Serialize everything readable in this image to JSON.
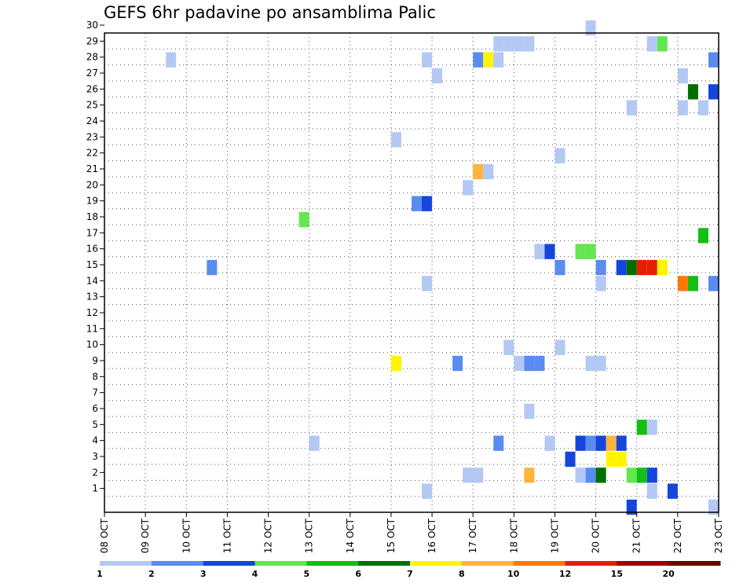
{
  "chart_data": {
    "type": "heatmap",
    "title": "GEFS 6hr padavine po ansamblima Palic",
    "x_ticks": [
      "08 OCT",
      "09 OCT",
      "10 OCT",
      "11 OCT",
      "12 OCT",
      "13 OCT",
      "14 OCT",
      "15 OCT",
      "16 OCT",
      "17 OCT",
      "18 OCT",
      "19 OCT",
      "20 OCT",
      "21 OCT",
      "22 OCT",
      "23 OCT"
    ],
    "y_ticks": [
      "1",
      "2",
      "3",
      "4",
      "5",
      "6",
      "7",
      "8",
      "9",
      "10",
      "11",
      "12",
      "13",
      "14",
      "15",
      "16",
      "17",
      "18",
      "19",
      "20",
      "21",
      "22",
      "23",
      "24",
      "25",
      "26",
      "27",
      "28",
      "29",
      "30"
    ],
    "x_range": [
      "08 OCT 00Z",
      "23 OCT 00Z"
    ],
    "y_range": [
      0,
      30
    ],
    "grid": true,
    "time_step_hours": 6,
    "colorbar": {
      "labels": [
        "1",
        "2",
        "3",
        "4",
        "5",
        "6",
        "7",
        "8",
        "10",
        "12",
        "15",
        "20"
      ],
      "colors": [
        "#b4c8f4",
        "#5a8cf0",
        "#1446dc",
        "#64e650",
        "#14be14",
        "#006e00",
        "#fff500",
        "#ffb43c",
        "#ff7800",
        "#e61e00",
        "#a00000",
        "#6e0000"
      ]
    },
    "cells": [
      {
        "member": 30,
        "day": 19.875,
        "cat": 1
      },
      {
        "member": 29,
        "day": 17.625,
        "cat": 1
      },
      {
        "member": 29,
        "day": 17.875,
        "cat": 1
      },
      {
        "member": 29,
        "day": 18.125,
        "cat": 1
      },
      {
        "member": 29,
        "day": 18.375,
        "cat": 1
      },
      {
        "member": 29,
        "day": 21.375,
        "cat": 1
      },
      {
        "member": 29,
        "day": 21.625,
        "cat": 4
      },
      {
        "member": 28,
        "day": 9.625,
        "cat": 1
      },
      {
        "member": 28,
        "day": 15.875,
        "cat": 1
      },
      {
        "member": 28,
        "day": 17.125,
        "cat": 2
      },
      {
        "member": 28,
        "day": 17.375,
        "cat": 7
      },
      {
        "member": 28,
        "day": 17.625,
        "cat": 1
      },
      {
        "member": 28,
        "day": 22.875,
        "cat": 2
      },
      {
        "member": 27,
        "day": 16.125,
        "cat": 1
      },
      {
        "member": 27,
        "day": 22.125,
        "cat": 1
      },
      {
        "member": 26,
        "day": 22.375,
        "cat": 6
      },
      {
        "member": 26,
        "day": 22.875,
        "cat": 3
      },
      {
        "member": 25,
        "day": 20.875,
        "cat": 1
      },
      {
        "member": 25,
        "day": 22.125,
        "cat": 1
      },
      {
        "member": 25,
        "day": 22.625,
        "cat": 1
      },
      {
        "member": 23,
        "day": 15.125,
        "cat": 1
      },
      {
        "member": 22,
        "day": 19.125,
        "cat": 1
      },
      {
        "member": 21,
        "day": 17.125,
        "cat": 8
      },
      {
        "member": 21,
        "day": 17.375,
        "cat": 1
      },
      {
        "member": 20,
        "day": 16.875,
        "cat": 1
      },
      {
        "member": 19,
        "day": 15.625,
        "cat": 2
      },
      {
        "member": 19,
        "day": 15.875,
        "cat": 3
      },
      {
        "member": 18,
        "day": 12.875,
        "cat": 4
      },
      {
        "member": 17,
        "day": 22.625,
        "cat": 5
      },
      {
        "member": 16,
        "day": 18.625,
        "cat": 1
      },
      {
        "member": 16,
        "day": 18.875,
        "cat": 3
      },
      {
        "member": 16,
        "day": 19.625,
        "cat": 4
      },
      {
        "member": 16,
        "day": 19.875,
        "cat": 4
      },
      {
        "member": 15,
        "day": 10.625,
        "cat": 2
      },
      {
        "member": 15,
        "day": 19.125,
        "cat": 2
      },
      {
        "member": 15,
        "day": 20.125,
        "cat": 2
      },
      {
        "member": 15,
        "day": 20.625,
        "cat": 3
      },
      {
        "member": 15,
        "day": 20.875,
        "cat": 6
      },
      {
        "member": 15,
        "day": 21.125,
        "cat": 10
      },
      {
        "member": 15,
        "day": 21.375,
        "cat": 10
      },
      {
        "member": 15,
        "day": 21.625,
        "cat": 7
      },
      {
        "member": 14,
        "day": 15.875,
        "cat": 1
      },
      {
        "member": 14,
        "day": 20.125,
        "cat": 1
      },
      {
        "member": 14,
        "day": 22.125,
        "cat": 9
      },
      {
        "member": 14,
        "day": 22.375,
        "cat": 5
      },
      {
        "member": 14,
        "day": 22.875,
        "cat": 2
      },
      {
        "member": 10,
        "day": 17.875,
        "cat": 1
      },
      {
        "member": 10,
        "day": 19.125,
        "cat": 1
      },
      {
        "member": 9,
        "day": 15.125,
        "cat": 7
      },
      {
        "member": 9,
        "day": 16.625,
        "cat": 2
      },
      {
        "member": 9,
        "day": 18.125,
        "cat": 1
      },
      {
        "member": 9,
        "day": 18.375,
        "cat": 2
      },
      {
        "member": 9,
        "day": 18.625,
        "cat": 2
      },
      {
        "member": 9,
        "day": 19.875,
        "cat": 1
      },
      {
        "member": 9,
        "day": 20.125,
        "cat": 1
      },
      {
        "member": 6,
        "day": 18.375,
        "cat": 1
      },
      {
        "member": 5,
        "day": 21.125,
        "cat": 5
      },
      {
        "member": 5,
        "day": 21.375,
        "cat": 1
      },
      {
        "member": 4,
        "day": 13.125,
        "cat": 1
      },
      {
        "member": 4,
        "day": 17.625,
        "cat": 2
      },
      {
        "member": 4,
        "day": 18.875,
        "cat": 1
      },
      {
        "member": 4,
        "day": 19.625,
        "cat": 3
      },
      {
        "member": 4,
        "day": 19.875,
        "cat": 2
      },
      {
        "member": 4,
        "day": 20.125,
        "cat": 3
      },
      {
        "member": 4,
        "day": 20.375,
        "cat": 8
      },
      {
        "member": 4,
        "day": 20.625,
        "cat": 3
      },
      {
        "member": 3,
        "day": 19.375,
        "cat": 3
      },
      {
        "member": 3,
        "day": 20.375,
        "cat": 7
      },
      {
        "member": 3,
        "day": 20.625,
        "cat": 7
      },
      {
        "member": 2,
        "day": 16.875,
        "cat": 1
      },
      {
        "member": 2,
        "day": 17.125,
        "cat": 1
      },
      {
        "member": 2,
        "day": 18.375,
        "cat": 8
      },
      {
        "member": 2,
        "day": 19.625,
        "cat": 1
      },
      {
        "member": 2,
        "day": 19.875,
        "cat": 2
      },
      {
        "member": 2,
        "day": 20.125,
        "cat": 6
      },
      {
        "member": 2,
        "day": 20.875,
        "cat": 4
      },
      {
        "member": 2,
        "day": 21.125,
        "cat": 5
      },
      {
        "member": 2,
        "day": 21.375,
        "cat": 3
      },
      {
        "member": 1,
        "day": 15.875,
        "cat": 1
      },
      {
        "member": 1,
        "day": 21.375,
        "cat": 1
      },
      {
        "member": 1,
        "day": 21.875,
        "cat": 3
      },
      {
        "member": 0,
        "day": 20.875,
        "cat": 3
      },
      {
        "member": 0,
        "day": 22.875,
        "cat": 1
      }
    ]
  }
}
